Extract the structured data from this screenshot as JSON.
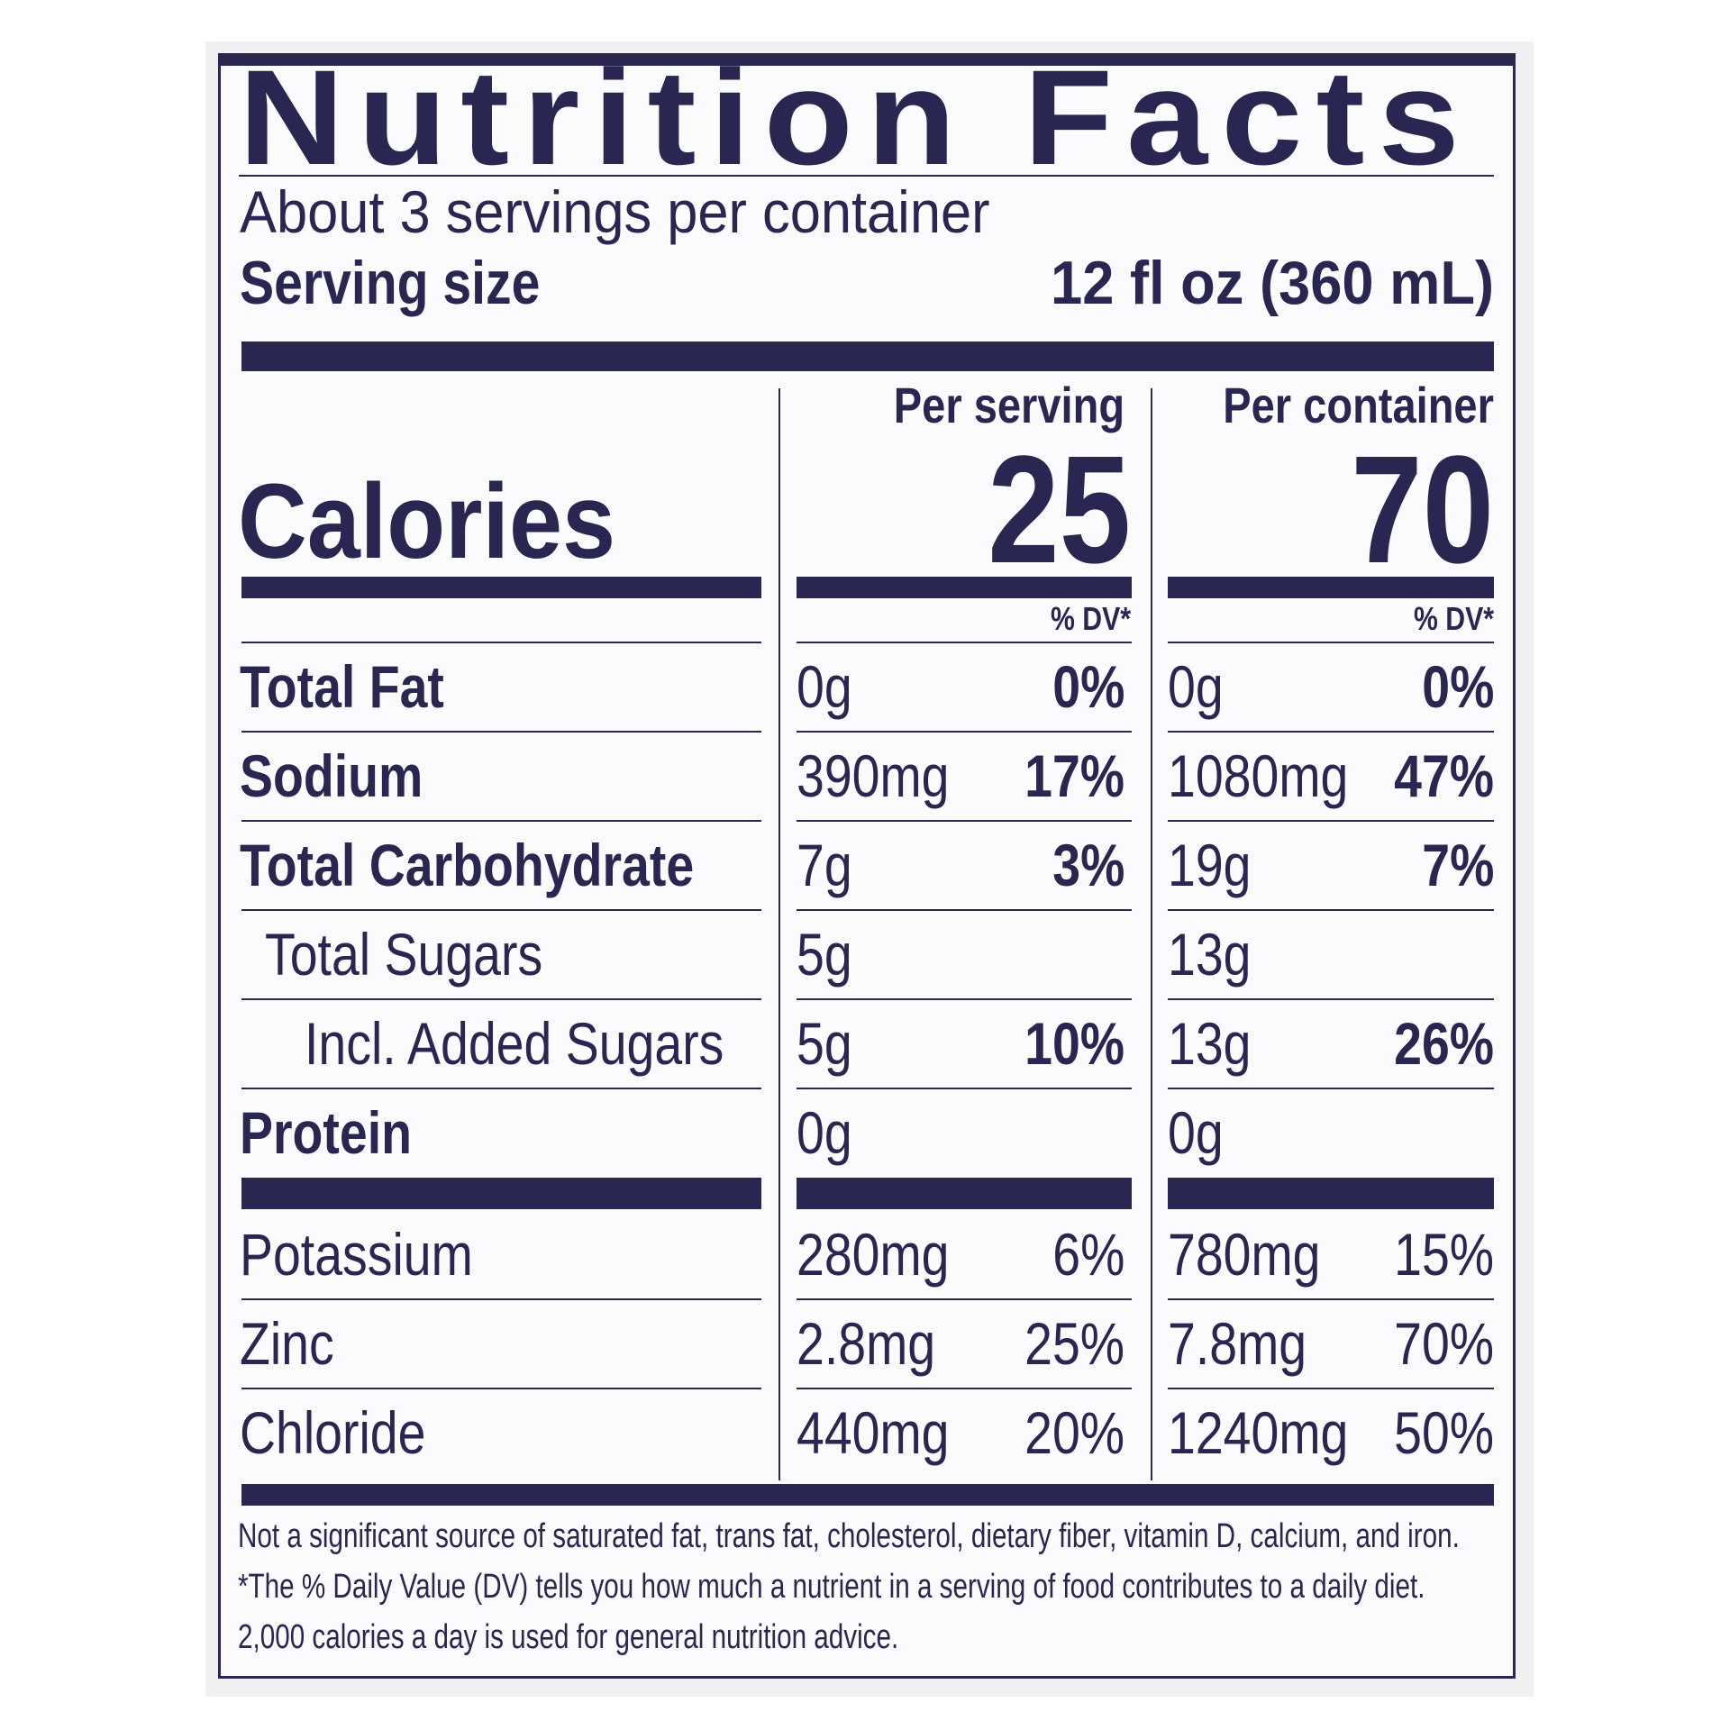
{
  "title": "Nutrition Facts",
  "servings_per_container": "About 3 servings per container",
  "serving_size": {
    "label": "Serving size",
    "value": "12 fl oz (360 mL)"
  },
  "columns": {
    "per_serving": "Per serving",
    "per_container": "Per container"
  },
  "calories": {
    "label": "Calories",
    "per_serving": "25",
    "per_container": "70"
  },
  "dv_header": "% DV*",
  "nutrients": [
    {
      "name": "Total Fat",
      "bold": true,
      "indent": 0,
      "serving_amount": "0g",
      "serving_dv": "0%",
      "container_amount": "0g",
      "container_dv": "0%"
    },
    {
      "name": "Sodium",
      "bold": true,
      "indent": 0,
      "serving_amount": "390mg",
      "serving_dv": "17%",
      "container_amount": "1080mg",
      "container_dv": "47%"
    },
    {
      "name": "Total Carbohydrate",
      "bold": true,
      "indent": 0,
      "serving_amount": "7g",
      "serving_dv": "3%",
      "container_amount": "19g",
      "container_dv": "7%"
    },
    {
      "name": "Total Sugars",
      "bold": false,
      "indent": 1,
      "serving_amount": "5g",
      "serving_dv": "",
      "container_amount": "13g",
      "container_dv": ""
    },
    {
      "name": "Incl. Added Sugars",
      "bold": false,
      "indent": 2,
      "serving_amount": "5g",
      "serving_dv": "10%",
      "container_amount": "13g",
      "container_dv": "26%"
    },
    {
      "name": "Protein",
      "bold": true,
      "indent": 0,
      "serving_amount": "0g",
      "serving_dv": "",
      "container_amount": "0g",
      "container_dv": ""
    }
  ],
  "minerals": [
    {
      "name": "Potassium",
      "serving_amount": "280mg",
      "serving_dv": "6%",
      "container_amount": "780mg",
      "container_dv": "15%"
    },
    {
      "name": "Zinc",
      "serving_amount": "2.8mg",
      "serving_dv": "25%",
      "container_amount": "7.8mg",
      "container_dv": "70%"
    },
    {
      "name": "Chloride",
      "serving_amount": "440mg",
      "serving_dv": "20%",
      "container_amount": "1240mg",
      "container_dv": "50%"
    }
  ],
  "footnotes": [
    "Not a significant source of saturated fat, trans fat, cholesterol, dietary fiber, vitamin D, calcium, and iron.",
    "*The % Daily Value (DV) tells you how much a nutrient in a serving of food contributes to a daily diet.",
    "2,000 calories a day is used for general nutrition advice."
  ],
  "colors": {
    "ink": "#2a2652",
    "label_bg": "#fbfafc",
    "outer_bg": "#f1eff2"
  }
}
